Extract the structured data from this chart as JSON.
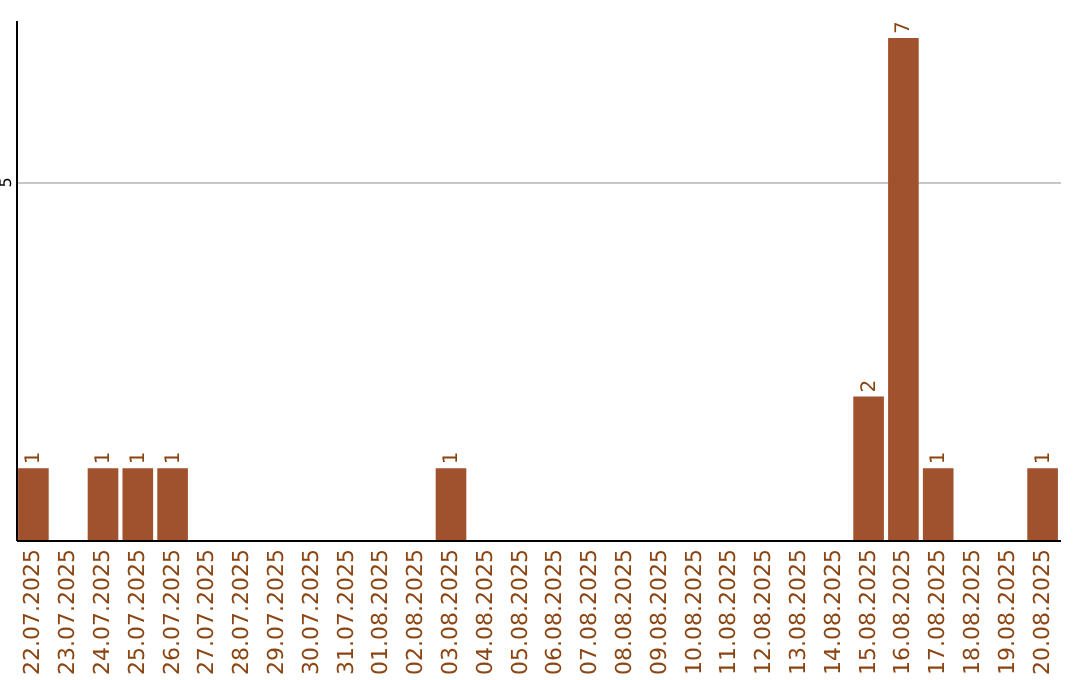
{
  "chart_data": {
    "type": "bar",
    "categories": [
      "22.07.2025",
      "23.07.2025",
      "24.07.2025",
      "25.07.2025",
      "26.07.2025",
      "27.07.2025",
      "28.07.2025",
      "29.07.2025",
      "30.07.2025",
      "31.07.2025",
      "01.08.2025",
      "02.08.2025",
      "03.08.2025",
      "04.08.2025",
      "05.08.2025",
      "06.08.2025",
      "07.08.2025",
      "08.08.2025",
      "09.08.2025",
      "10.08.2025",
      "11.08.2025",
      "12.08.2025",
      "13.08.2025",
      "14.08.2025",
      "15.08.2025",
      "16.08.2025",
      "17.08.2025",
      "18.08.2025",
      "19.08.2025",
      "20.08.2025"
    ],
    "values": [
      1,
      0,
      1,
      1,
      1,
      0,
      0,
      0,
      0,
      0,
      0,
      0,
      1,
      0,
      0,
      0,
      0,
      0,
      0,
      0,
      0,
      0,
      0,
      0,
      2,
      7,
      1,
      0,
      0,
      1
    ],
    "value_labels": [
      "1",
      null,
      "1",
      "1",
      "1",
      null,
      null,
      null,
      null,
      null,
      null,
      null,
      "1",
      null,
      null,
      null,
      null,
      null,
      null,
      null,
      null,
      null,
      null,
      null,
      "2",
      "7",
      "1",
      null,
      null,
      "1"
    ],
    "color": "#a0522d",
    "ylim": [
      0,
      7.25
    ],
    "yticks": [
      5
    ],
    "grid": "y"
  }
}
